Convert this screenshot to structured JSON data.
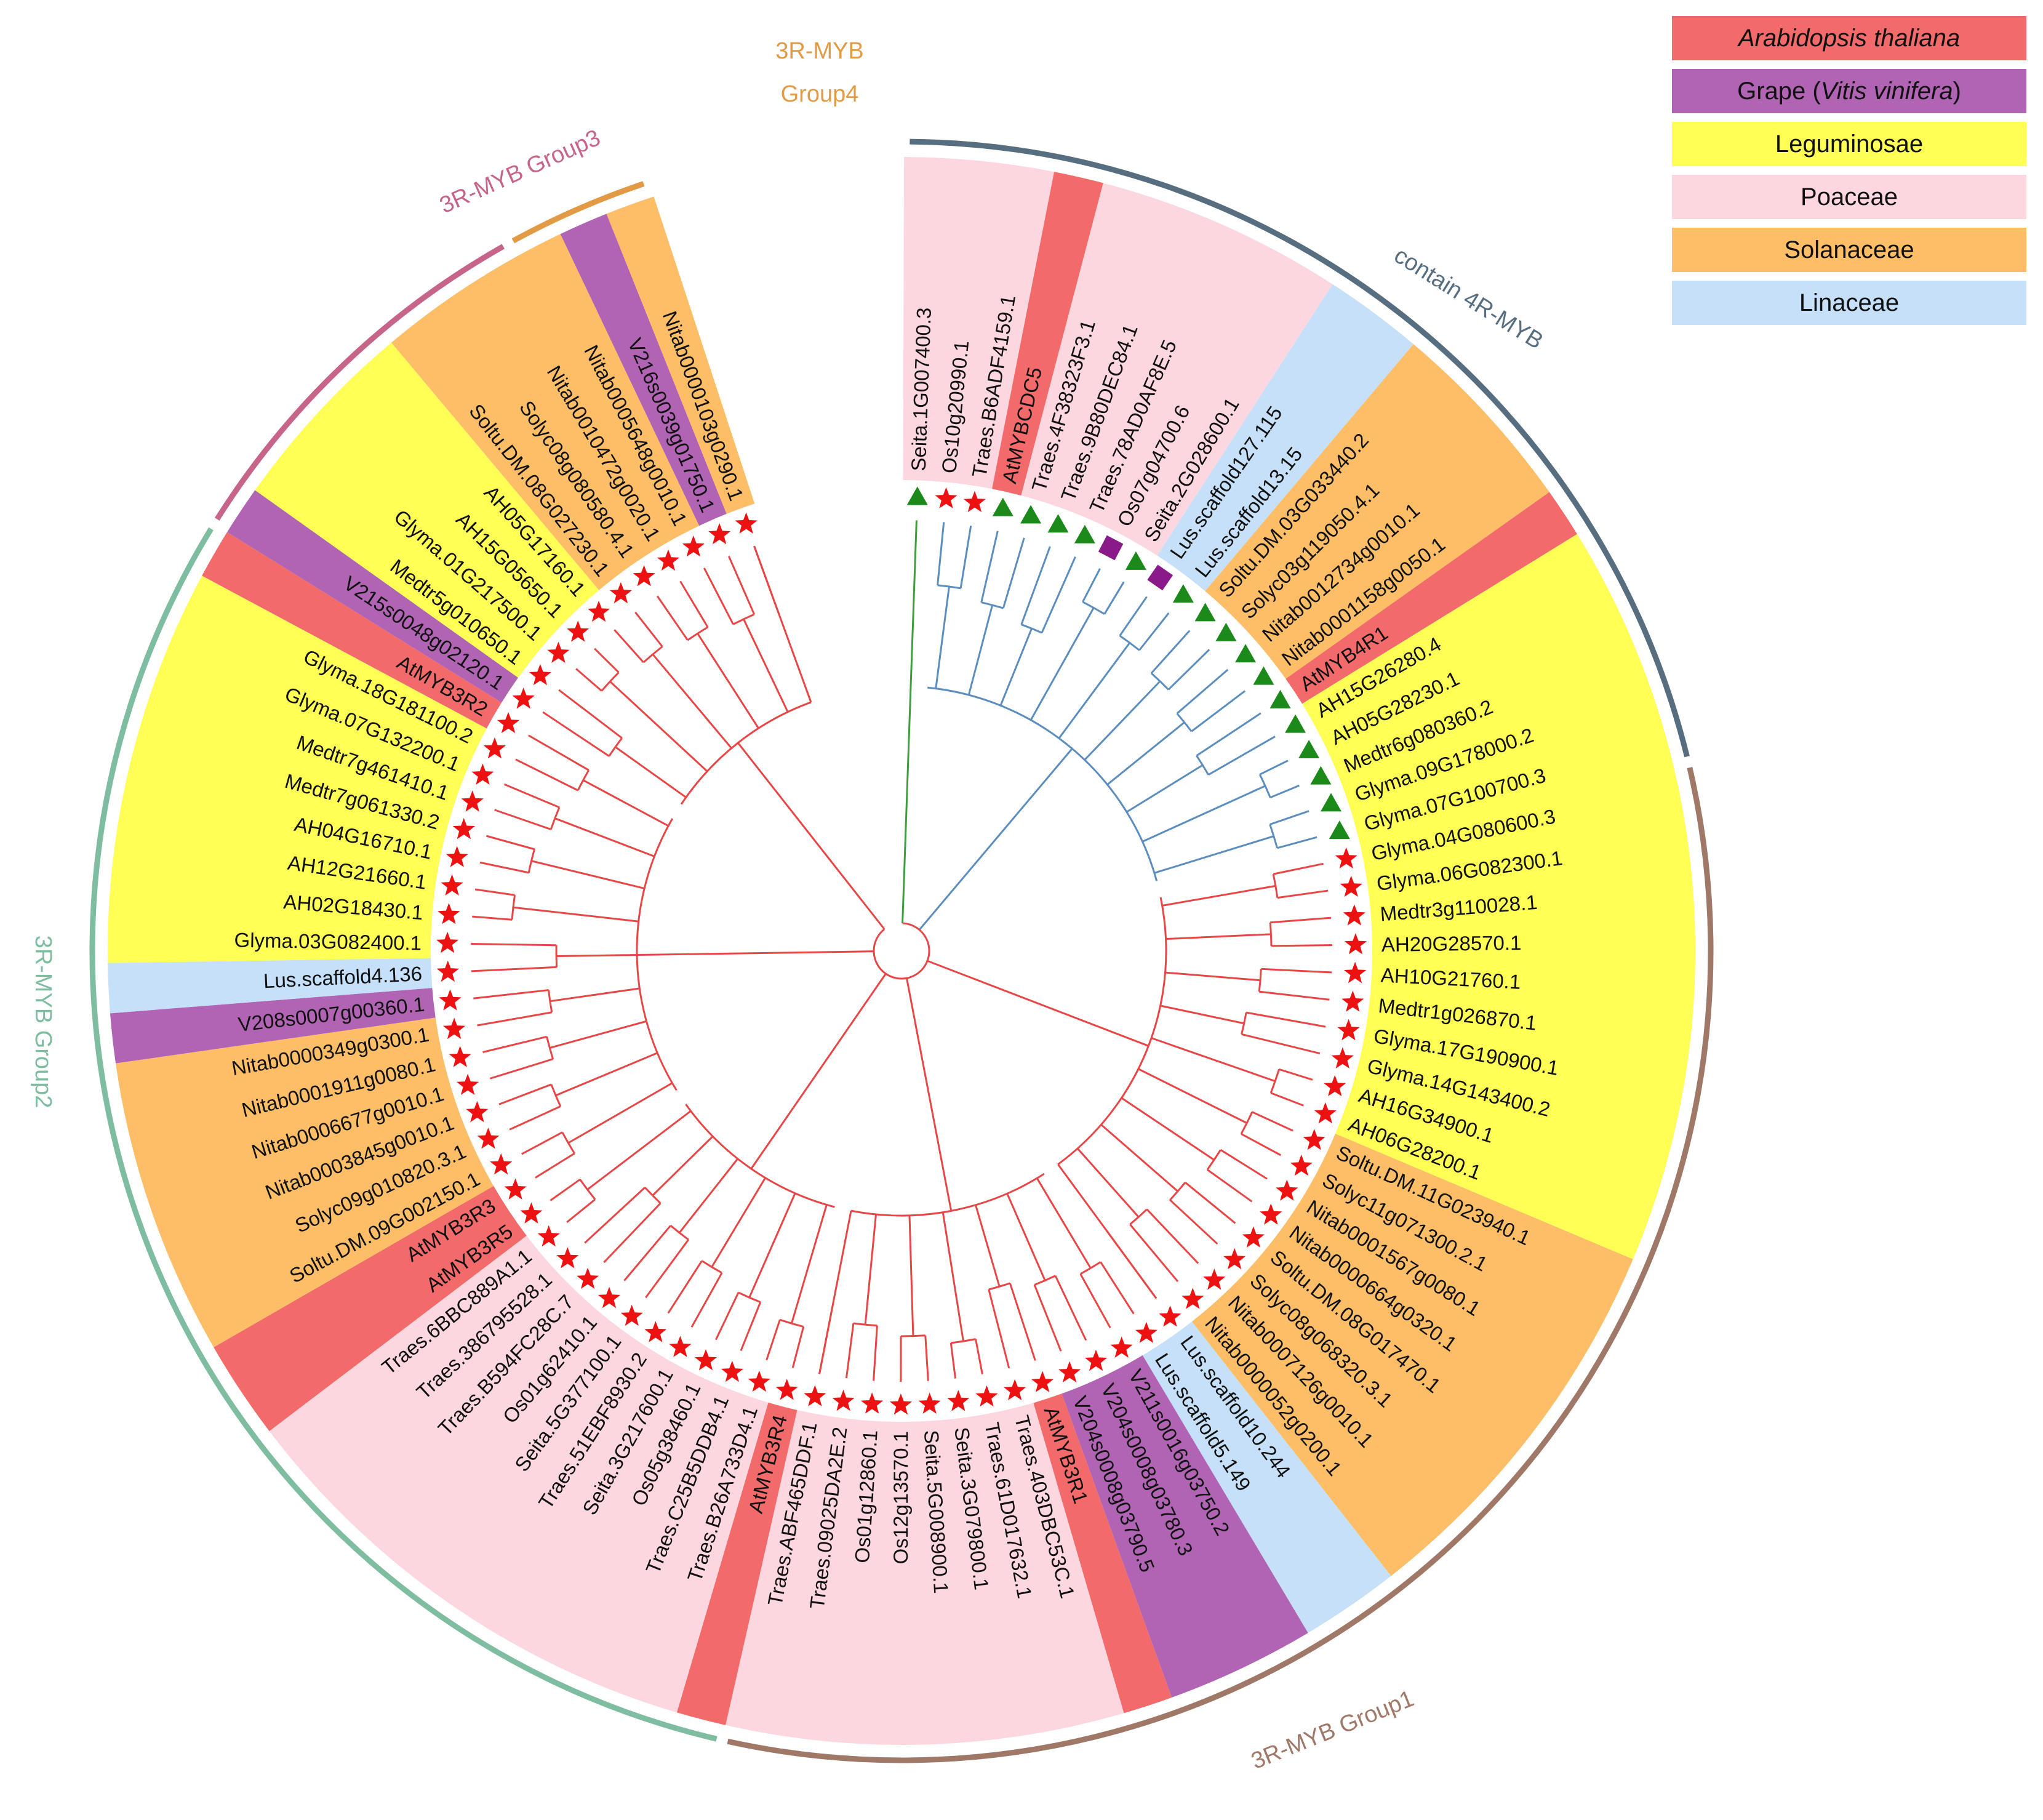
{
  "colors": {
    "arabidopsis": "#F36A6B",
    "grape": "#B064B3",
    "legume": "#FFFF55",
    "poaceae": "#FDD7DF",
    "solanaceae": "#FDBE67",
    "linaceae": "#C5E0F8",
    "clade_3r": "#E84646",
    "clade_4r": "#5B8DBE",
    "clade_green": "#3E9E3E",
    "star": "#EE1111",
    "triangle": "#1B8A1B",
    "square": "#8A1A8A"
  },
  "legend": [
    {
      "name": "Arabidopsis thaliana",
      "italic": "Arabidopsis thaliana",
      "pre": "",
      "post": "",
      "key": "arabidopsis"
    },
    {
      "name": "Grape (Vitis vinifera)",
      "pre": "Grape (",
      "italic": "Vitis vinifera",
      "post": ")",
      "key": "grape"
    },
    {
      "name": "Leguminosae",
      "pre": "Leguminosae",
      "italic": "",
      "post": "",
      "key": "legume"
    },
    {
      "name": "Poaceae",
      "pre": "Poaceae",
      "italic": "",
      "post": "",
      "key": "poaceae"
    },
    {
      "name": "Solanaceae",
      "pre": "Solanaceae",
      "italic": "",
      "post": "",
      "key": "solanaceae"
    },
    {
      "name": "Linaceae",
      "pre": "Linaceae",
      "italic": "",
      "post": "",
      "key": "linaceae"
    }
  ],
  "groups": [
    {
      "label": "3R-MYB Group1",
      "color": "#A07868"
    },
    {
      "label": "3R-MYB Group2",
      "color": "#7EBDA0"
    },
    {
      "label": "3R-MYB Group3",
      "color": "#C7648A"
    },
    {
      "label_line1": "3R-MYB",
      "label_line2": "Group4",
      "color": "#E39A45"
    },
    {
      "label": "contain 4R-MYB",
      "color": "#566E80"
    }
  ],
  "leaves": [
    {
      "label": "Seita.1G007400.3",
      "fam": "poaceae",
      "marker": "triangle"
    },
    {
      "label": "Os10g20990.1",
      "fam": "poaceae",
      "marker": "star"
    },
    {
      "label": "Traes.B6ADF4159.1",
      "fam": "poaceae",
      "marker": "star"
    },
    {
      "label": "AtMYBCDC5",
      "fam": "arabidopsis",
      "marker": "triangle"
    },
    {
      "label": "Traes.4F38323F3.1",
      "fam": "poaceae",
      "marker": "triangle"
    },
    {
      "label": "Traes.9B80DEC84.1",
      "fam": "poaceae",
      "marker": "triangle"
    },
    {
      "label": "Traes.78AD0AF8E.5",
      "fam": "poaceae",
      "marker": "triangle"
    },
    {
      "label": "Os07g04700.6",
      "fam": "poaceae",
      "marker": "square"
    },
    {
      "label": "Seita.2G028600.1",
      "fam": "poaceae",
      "marker": "triangle"
    },
    {
      "label": "Lus.scaffold127.115",
      "fam": "linaceae",
      "marker": "square"
    },
    {
      "label": "Lus.scaffold13.15",
      "fam": "linaceae",
      "marker": "triangle"
    },
    {
      "label": "Soltu.DM.03G033440.2",
      "fam": "solanaceae",
      "marker": "triangle"
    },
    {
      "label": "Solyc03g119050.4.1",
      "fam": "solanaceae",
      "marker": "triangle"
    },
    {
      "label": "Nitab0012734g0010.1",
      "fam": "solanaceae",
      "marker": "triangle"
    },
    {
      "label": "Nitab0001158g0050.1",
      "fam": "solanaceae",
      "marker": "triangle"
    },
    {
      "label": "AtMYB4R1",
      "fam": "arabidopsis",
      "marker": "triangle"
    },
    {
      "label": "AH15G26280.4",
      "fam": "legume",
      "marker": "triangle"
    },
    {
      "label": "AH05G28230.1",
      "fam": "legume",
      "marker": "triangle"
    },
    {
      "label": "Medtr6g080360.2",
      "fam": "legume",
      "marker": "triangle"
    },
    {
      "label": "Glyma.09G178000.2",
      "fam": "legume",
      "marker": "triangle"
    },
    {
      "label": "Glyma.07G100700.3",
      "fam": "legume",
      "marker": "triangle"
    },
    {
      "label": "Glyma.04G080600.3",
      "fam": "legume",
      "marker": "star"
    },
    {
      "label": "Glyma.06G082300.1",
      "fam": "legume",
      "marker": "star"
    },
    {
      "label": "Medtr3g110028.1",
      "fam": "legume",
      "marker": "star"
    },
    {
      "label": "AH20G28570.1",
      "fam": "legume",
      "marker": "star"
    },
    {
      "label": "AH10G21760.1",
      "fam": "legume",
      "marker": "star"
    },
    {
      "label": "Medtr1g026870.1",
      "fam": "legume",
      "marker": "star"
    },
    {
      "label": "Glyma.17G190900.1",
      "fam": "legume",
      "marker": "star"
    },
    {
      "label": "Glyma.14G143400.2",
      "fam": "legume",
      "marker": "star"
    },
    {
      "label": "AH16G34900.1",
      "fam": "legume",
      "marker": "star"
    },
    {
      "label": "AH06G28200.1",
      "fam": "legume",
      "marker": "star"
    },
    {
      "label": "Soltu.DM.11G023940.1",
      "fam": "solanaceae",
      "marker": "star"
    },
    {
      "label": "Solyc11g071300.2.1",
      "fam": "solanaceae",
      "marker": "star"
    },
    {
      "label": "Nitab0001567g0080.1",
      "fam": "solanaceae",
      "marker": "star"
    },
    {
      "label": "Nitab0000664g0320.1",
      "fam": "solanaceae",
      "marker": "star"
    },
    {
      "label": "Soltu.DM.08G017470.1",
      "fam": "solanaceae",
      "marker": "star"
    },
    {
      "label": "Solyc08g068320.3.1",
      "fam": "solanaceae",
      "marker": "star"
    },
    {
      "label": "Nitab0007126g0010.1",
      "fam": "solanaceae",
      "marker": "star"
    },
    {
      "label": "Nitab0000052g0200.1",
      "fam": "solanaceae",
      "marker": "star"
    },
    {
      "label": "Lus.scaffold10.244",
      "fam": "linaceae",
      "marker": "star"
    },
    {
      "label": "Lus.scaffold5.149",
      "fam": "linaceae",
      "marker": "star"
    },
    {
      "label": "V211s0016g03750.2",
      "fam": "grape",
      "marker": "star"
    },
    {
      "label": "V204s0008g03780.3",
      "fam": "grape",
      "marker": "star"
    },
    {
      "label": "V204s0008g03790.5",
      "fam": "grape",
      "marker": "star"
    },
    {
      "label": "AtMYB3R1",
      "fam": "arabidopsis",
      "marker": "star"
    },
    {
      "label": "Traes.403DBC53C.1",
      "fam": "poaceae",
      "marker": "star"
    },
    {
      "label": "Traes.61D017632.1",
      "fam": "poaceae",
      "marker": "star"
    },
    {
      "label": "Seita.3G079800.1",
      "fam": "poaceae",
      "marker": "star"
    },
    {
      "label": "Seita.5G008900.1",
      "fam": "poaceae",
      "marker": "star"
    },
    {
      "label": "Os12g13570.1",
      "fam": "poaceae",
      "marker": "star"
    },
    {
      "label": "Os01g12860.1",
      "fam": "poaceae",
      "marker": "star"
    },
    {
      "label": "Traes.09025DA2E.2",
      "fam": "poaceae",
      "marker": "star"
    },
    {
      "label": "Traes.ABF465DDF.1",
      "fam": "poaceae",
      "marker": "star"
    },
    {
      "label": "AtMYB3R4",
      "fam": "arabidopsis",
      "marker": "star"
    },
    {
      "label": "Traes.B26A733D4.1",
      "fam": "poaceae",
      "marker": "star"
    },
    {
      "label": "Traes.C25B5DDB4.1",
      "fam": "poaceae",
      "marker": "star"
    },
    {
      "label": "Os05g38460.1",
      "fam": "poaceae",
      "marker": "star"
    },
    {
      "label": "Seita.3G217600.1",
      "fam": "poaceae",
      "marker": "star"
    },
    {
      "label": "Traes.51EBF8930.2",
      "fam": "poaceae",
      "marker": "star"
    },
    {
      "label": "Seita.5G377100.1",
      "fam": "poaceae",
      "marker": "star"
    },
    {
      "label": "Os01g62410.1",
      "fam": "poaceae",
      "marker": "star"
    },
    {
      "label": "Traes.B594FC28C.7",
      "fam": "poaceae",
      "marker": "star"
    },
    {
      "label": "Traes.386795528.1",
      "fam": "poaceae",
      "marker": "star"
    },
    {
      "label": "Traes.6BBC889A1.1",
      "fam": "poaceae",
      "marker": "star"
    },
    {
      "label": "AtMYB3R5",
      "fam": "arabidopsis",
      "marker": "star"
    },
    {
      "label": "AtMYB3R3",
      "fam": "arabidopsis",
      "marker": "star"
    },
    {
      "label": "Soltu.DM.09G002150.1",
      "fam": "solanaceae",
      "marker": "star"
    },
    {
      "label": "Solyc09g010820.3.1",
      "fam": "solanaceae",
      "marker": "star"
    },
    {
      "label": "Nitab0003845g0010.1",
      "fam": "solanaceae",
      "marker": "star"
    },
    {
      "label": "Nitab0006677g0010.1",
      "fam": "solanaceae",
      "marker": "star"
    },
    {
      "label": "Nitab0001911g0080.1",
      "fam": "solanaceae",
      "marker": "star"
    },
    {
      "label": "Nitab0000349g0300.1",
      "fam": "solanaceae",
      "marker": "star"
    },
    {
      "label": "V208s0007g00360.1",
      "fam": "grape",
      "marker": "star"
    },
    {
      "label": "Lus.scaffold4.136",
      "fam": "linaceae",
      "marker": "star"
    },
    {
      "label": "Glyma.03G082400.1",
      "fam": "legume",
      "marker": "star"
    },
    {
      "label": "AH02G18430.1",
      "fam": "legume",
      "marker": "star"
    },
    {
      "label": "AH12G21660.1",
      "fam": "legume",
      "marker": "star"
    },
    {
      "label": "AH04G16710.1",
      "fam": "legume",
      "marker": "star"
    },
    {
      "label": "Medtr7g061330.2",
      "fam": "legume",
      "marker": "star"
    },
    {
      "label": "Medtr7g461410.1",
      "fam": "legume",
      "marker": "star"
    },
    {
      "label": "Glyma.07G132200.1",
      "fam": "legume",
      "marker": "star"
    },
    {
      "label": "Glyma.18G181100.2",
      "fam": "legume",
      "marker": "star"
    },
    {
      "label": "AtMYB3R2",
      "fam": "arabidopsis",
      "marker": "star"
    },
    {
      "label": "V215s0048g02120.1",
      "fam": "grape",
      "marker": "star"
    },
    {
      "label": "Medtr5g010650.1",
      "fam": "legume",
      "marker": "star"
    },
    {
      "label": "Glyma.01G217500.1",
      "fam": "legume",
      "marker": "star"
    },
    {
      "label": "AH15G05650.1",
      "fam": "legume",
      "marker": "star"
    },
    {
      "label": "AH05G17160.1",
      "fam": "legume",
      "marker": "star"
    },
    {
      "label": "Soltu.DM.08G027230.1",
      "fam": "solanaceae",
      "marker": "star"
    },
    {
      "label": "Solyc08g080580.4.1",
      "fam": "solanaceae",
      "marker": "star"
    },
    {
      "label": "Nitab0010472g0020.1",
      "fam": "solanaceae",
      "marker": "star"
    },
    {
      "label": "Nitab0005648g0010.1",
      "fam": "solanaceae",
      "marker": "star"
    },
    {
      "label": "V216s0039g01750.1",
      "fam": "grape",
      "marker": "star"
    },
    {
      "label": "Nitab0000103g0290.1",
      "fam": "solanaceae",
      "marker": "star"
    }
  ]
}
